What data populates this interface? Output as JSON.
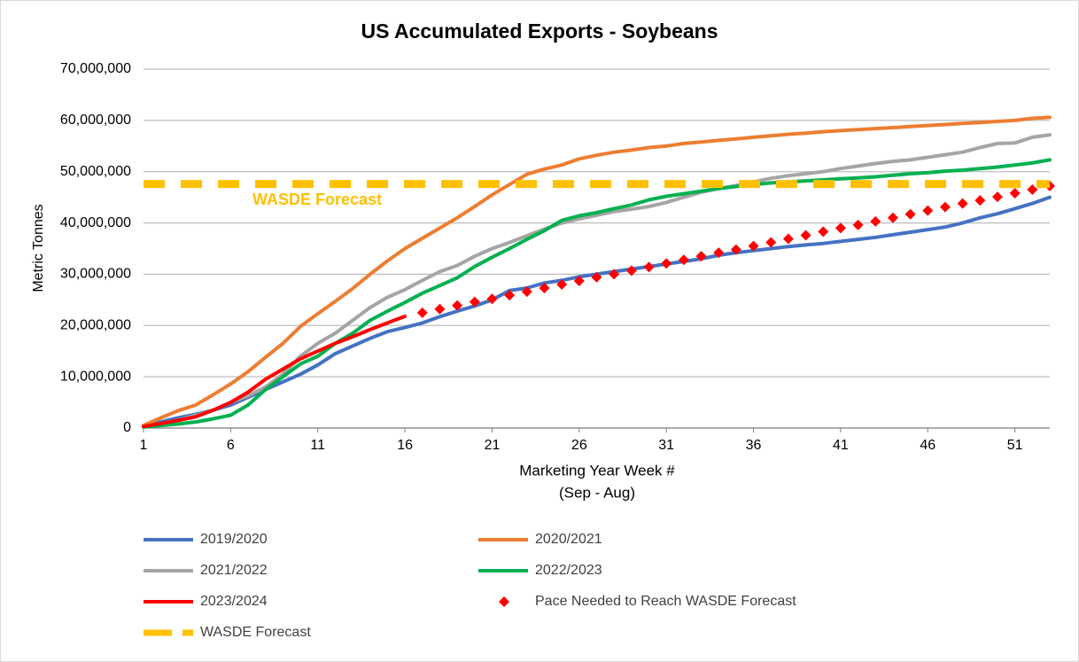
{
  "chart_data": {
    "type": "line",
    "title": "US Accumulated Exports - Soybeans",
    "ylabel": "Metric Tonnes",
    "xlabel": [
      "Marketing Year Week #",
      "(Sep - Aug)"
    ],
    "annotation": "WASDE Forecast",
    "grid": true,
    "xlim": [
      1,
      53
    ],
    "xticks": [
      1,
      6,
      11,
      16,
      21,
      26,
      31,
      36,
      41,
      46,
      51
    ],
    "ylim": [
      0,
      70000000
    ],
    "yticks": [
      0,
      {
        "value": 10000000,
        "label": "10,000,000"
      },
      {
        "value": 20000000,
        "label": "20,000,000"
      },
      {
        "value": 30000000,
        "label": "30,000,000"
      },
      {
        "value": 40000000,
        "label": "40,000,000"
      },
      {
        "value": 50000000,
        "label": "50,000,000"
      },
      {
        "value": 60000000,
        "label": "60,000,000"
      },
      {
        "value": 70000000,
        "label": "70,000,000"
      }
    ],
    "x": [
      1,
      2,
      3,
      4,
      5,
      6,
      7,
      8,
      9,
      10,
      11,
      12,
      13,
      14,
      15,
      16,
      17,
      18,
      19,
      20,
      21,
      22,
      23,
      24,
      25,
      26,
      27,
      28,
      29,
      30,
      31,
      32,
      33,
      34,
      35,
      36,
      37,
      38,
      39,
      40,
      41,
      42,
      43,
      44,
      45,
      46,
      47,
      48,
      49,
      50,
      51,
      52,
      53
    ],
    "series": [
      {
        "name": "2019/2020",
        "color": "#4472C4",
        "values": [
          300000,
          1200000,
          2000000,
          2700000,
          3500000,
          4500000,
          6000000,
          7500000,
          9000000,
          10500000,
          12300000,
          14500000,
          16000000,
          17500000,
          18800000,
          19600000,
          20500000,
          21700000,
          22800000,
          23800000,
          25000000,
          26800000,
          27300000,
          28300000,
          28800000,
          29500000,
          30000000,
          30500000,
          31000000,
          31500000,
          32000000,
          32500000,
          33000000,
          33700000,
          34200000,
          34600000,
          35000000,
          35400000,
          35700000,
          36000000,
          36400000,
          36800000,
          37200000,
          37700000,
          38200000,
          38700000,
          39200000,
          40000000,
          41000000,
          41800000,
          42800000,
          43800000,
          45000000
        ]
      },
      {
        "name": "2020/2021",
        "color": "#ED7D31",
        "values": [
          500000,
          2000000,
          3400000,
          4500000,
          6500000,
          8600000,
          11000000,
          13800000,
          16500000,
          19800000,
          22300000,
          24700000,
          27200000,
          30000000,
          32600000,
          35000000,
          37000000,
          39000000,
          41000000,
          43200000,
          45500000,
          47500000,
          49500000,
          50500000,
          51300000,
          52500000,
          53200000,
          53800000,
          54200000,
          54700000,
          55000000,
          55500000,
          55800000,
          56100000,
          56400000,
          56700000,
          57000000,
          57300000,
          57500000,
          57800000,
          58000000,
          58200000,
          58400000,
          58600000,
          58800000,
          59000000,
          59200000,
          59400000,
          59600000,
          59800000,
          60000000,
          60400000,
          60600000
        ]
      },
      {
        "name": "2021/2022",
        "color": "#A5A5A5",
        "values": [
          300000,
          800000,
          1500000,
          2500000,
          3500000,
          5000000,
          6300000,
          8000000,
          10500000,
          14000000,
          16500000,
          18500000,
          21000000,
          23500000,
          25500000,
          27000000,
          28800000,
          30500000,
          31700000,
          33500000,
          35000000,
          36200000,
          37500000,
          38800000,
          40000000,
          40800000,
          41500000,
          42200000,
          42700000,
          43200000,
          44000000,
          45000000,
          46000000,
          46700000,
          47300000,
          48000000,
          48700000,
          49200000,
          49600000,
          50000000,
          50600000,
          51100000,
          51600000,
          52000000,
          52300000,
          52800000,
          53300000,
          53800000,
          54700000,
          55500000,
          55600000,
          56700000,
          57200000
        ]
      },
      {
        "name": "2022/2023",
        "color": "#00B050",
        "values": [
          200000,
          500000,
          800000,
          1200000,
          1800000,
          2500000,
          4500000,
          7500000,
          10000000,
          12500000,
          14000000,
          16500000,
          18500000,
          21000000,
          22800000,
          24500000,
          26300000,
          27800000,
          29300000,
          31500000,
          33300000,
          35000000,
          36800000,
          38500000,
          40500000,
          41400000,
          42000000,
          42800000,
          43500000,
          44500000,
          45200000,
          45700000,
          46200000,
          46700000,
          47100000,
          47500000,
          47800000,
          48000000,
          48200000,
          48400000,
          48600000,
          48800000,
          49000000,
          49300000,
          49600000,
          49800000,
          50100000,
          50300000,
          50600000,
          50900000,
          51300000,
          51700000,
          52300000
        ]
      },
      {
        "name": "2023/2024",
        "color": "#FF0000",
        "values": [
          300000,
          900000,
          1500000,
          2200000,
          3500000,
          5000000,
          7000000,
          9500000,
          11500000,
          13500000,
          15000000,
          16500000,
          17800000,
          19200000,
          20500000,
          21800000,
          null,
          null,
          null,
          null,
          null,
          null,
          null,
          null,
          null,
          null,
          null,
          null,
          null,
          null,
          null,
          null,
          null,
          null,
          null,
          null,
          null,
          null,
          null,
          null,
          null,
          null,
          null,
          null,
          null,
          null,
          null,
          null,
          null,
          null,
          null,
          null,
          null
        ]
      },
      {
        "name": "Pace Needed to Reach WASDE Forecast",
        "color": "#FF0000",
        "mode": "markers",
        "values": [
          null,
          null,
          null,
          null,
          null,
          null,
          null,
          null,
          null,
          null,
          null,
          null,
          null,
          null,
          null,
          null,
          22500000,
          23200000,
          23900000,
          24600000,
          25200000,
          25900000,
          26600000,
          27300000,
          28000000,
          28700000,
          29400000,
          30000000,
          30700000,
          31400000,
          32100000,
          32800000,
          33500000,
          34200000,
          34800000,
          35500000,
          36200000,
          36900000,
          37600000,
          38300000,
          39000000,
          39600000,
          40300000,
          41000000,
          41700000,
          42400000,
          43100000,
          43800000,
          44400000,
          45100000,
          45800000,
          46500000,
          47200000
        ]
      },
      {
        "name": "WASDE Forecast",
        "color": "#FFC000",
        "dash": true,
        "values": [
          47600000,
          47600000,
          47600000,
          47600000,
          47600000,
          47600000,
          47600000,
          47600000,
          47600000,
          47600000,
          47600000,
          47600000,
          47600000,
          47600000,
          47600000,
          47600000,
          47600000,
          47600000,
          47600000,
          47600000,
          47600000,
          47600000,
          47600000,
          47600000,
          47600000,
          47600000,
          47600000,
          47600000,
          47600000,
          47600000,
          47600000,
          47600000,
          47600000,
          47600000,
          47600000,
          47600000,
          47600000,
          47600000,
          47600000,
          47600000,
          47600000,
          47600000,
          47600000,
          47600000,
          47600000,
          47600000,
          47600000,
          47600000,
          47600000,
          47600000,
          47600000,
          47600000,
          47600000
        ]
      }
    ]
  }
}
